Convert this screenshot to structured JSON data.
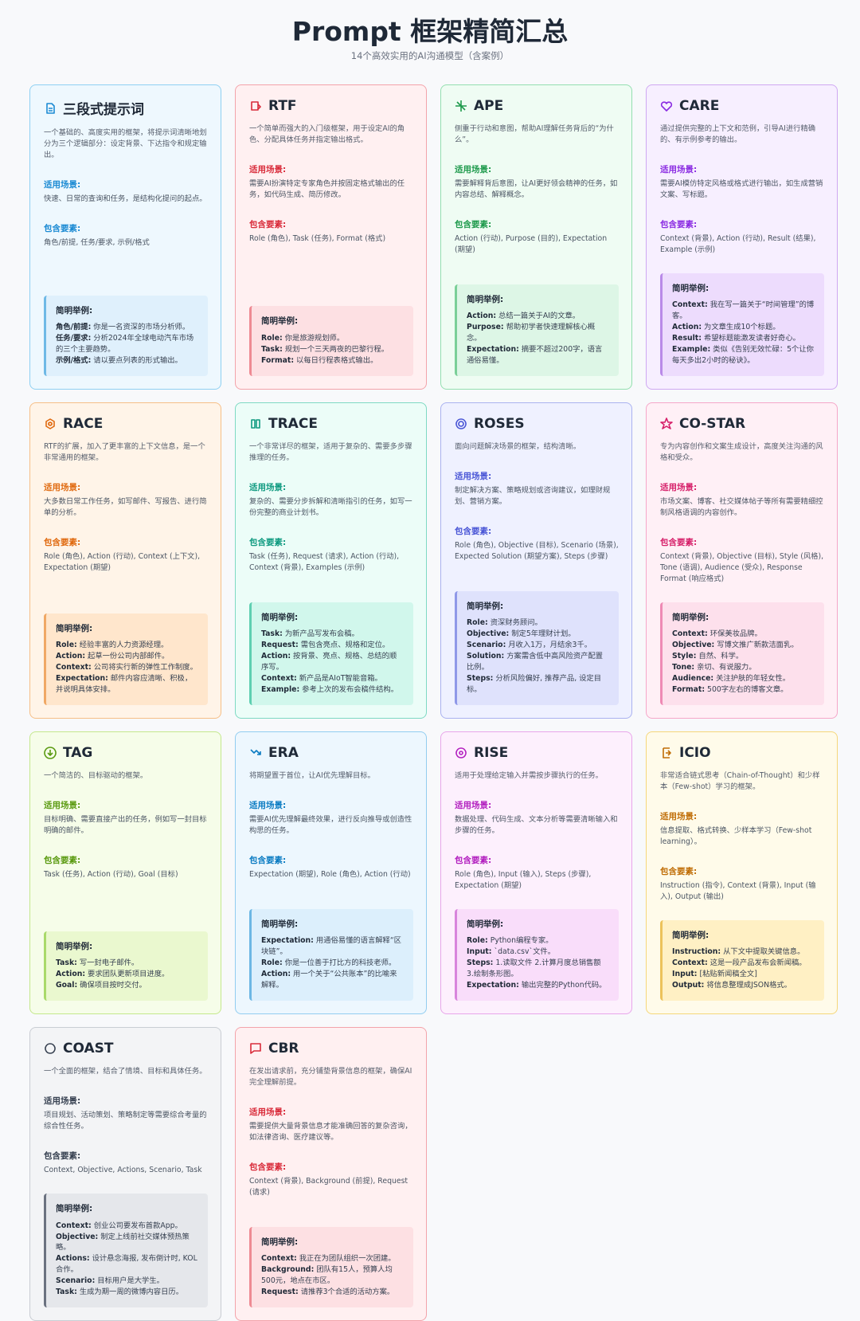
{
  "header": {
    "title": "Prompt 框架精简汇总",
    "subtitle": "14个高效实用的AI沟通模型（含案例）"
  },
  "cards": [
    {
      "title": "三段式提示词",
      "description": "一个基础的、高度实用的框架，将提示词清晰地划分为三个逻辑部分：设定背景、下达指令和规定输出。",
      "scenario_label": "适用场景:",
      "scenario": "快速、日常的查询和任务，是结构化提问的起点。",
      "elements_label": "包含要素:",
      "elements": "角色/前提, 任务/要求, 示例/格式",
      "example_label": "简明举例:",
      "example": [
        {
          "key": "角色/前提:",
          "text": "你是一名资深的市场分析师。"
        },
        {
          "key": "任务/要求:",
          "text": "分析2024年全球电动汽车市场的三个主要趋势。"
        },
        {
          "key": "示例/格式:",
          "text": "请以要点列表的形式输出。"
        }
      ]
    },
    {
      "title": "RTF",
      "description": "一个简单而强大的入门级框架，用于设定AI的角色、分配具体任务并指定输出格式。",
      "scenario_label": "适用场景:",
      "scenario": "需要AI扮演特定专家角色并按固定格式输出的任务，如代码生成、简历修改。",
      "elements_label": "包含要素:",
      "elements": "Role (角色), Task (任务), Format (格式)",
      "example_label": "简明举例:",
      "example": [
        {
          "key": "Role:",
          "text": "你是旅游规划师。"
        },
        {
          "key": "Task:",
          "text": "规划一个三天两夜的巴黎行程。"
        },
        {
          "key": "Format:",
          "text": "以每日行程表格式输出。"
        }
      ]
    },
    {
      "title": "APE",
      "description": "侧重于行动和意图，帮助AI理解任务背后的“为什么”。",
      "scenario_label": "适用场景:",
      "scenario": "需要解释背后意图，让AI更好领会精神的任务，如内容总结、解释概念。",
      "elements_label": "包含要素:",
      "elements": "Action (行动), Purpose (目的), Expectation (期望)",
      "example_label": "简明举例:",
      "example": [
        {
          "key": "Action:",
          "text": "总结一篇关于AI的文章。"
        },
        {
          "key": "Purpose:",
          "text": "帮助初学者快速理解核心概念。"
        },
        {
          "key": "Expectation:",
          "text": "摘要不超过200字，语言通俗易懂。"
        }
      ]
    },
    {
      "title": "CARE",
      "description": "通过提供完整的上下文和范例，引导AI进行精确的、有示例参考的输出。",
      "scenario_label": "适用场景:",
      "scenario": "需要AI模仿特定风格或格式进行输出，如生成营销文案、写标题。",
      "elements_label": "包含要素:",
      "elements": "Context (背景), Action (行动), Result (结果), Example (示例)",
      "example_label": "简明举例:",
      "example": [
        {
          "key": "Context:",
          "text": "我在写一篇关于“时间管理”的博客。"
        },
        {
          "key": "Action:",
          "text": "为文章生成10个标题。"
        },
        {
          "key": "Result:",
          "text": "希望标题能激发读者好奇心。"
        },
        {
          "key": "Example:",
          "text": "类似《告别无效忙碌：5个让你每天多出2小时的秘诀》。"
        }
      ]
    },
    {
      "title": "RACE",
      "description": "RTF的扩展，加入了更丰富的上下文信息，是一个非常通用的框架。",
      "scenario_label": "适用场景:",
      "scenario": "大多数日常工作任务，如写邮件、写报告、进行简单的分析。",
      "elements_label": "包含要素:",
      "elements": "Role (角色), Action (行动), Context (上下文), Expectation (期望)",
      "example_label": "简明举例:",
      "example": [
        {
          "key": "Role:",
          "text": "经验丰富的人力资源经理。"
        },
        {
          "key": "Action:",
          "text": "起草一份公司内部邮件。"
        },
        {
          "key": "Context:",
          "text": "公司将实行新的弹性工作制度。"
        },
        {
          "key": "Expectation:",
          "text": "邮件内容应清晰、积极，并说明具体安排。"
        }
      ]
    },
    {
      "title": "TRACE",
      "description": "一个非常详尽的框架，适用于复杂的、需要多步骤推理的任务。",
      "scenario_label": "适用场景:",
      "scenario": "复杂的、需要分步拆解和清晰指引的任务，如写一份完整的商业计划书。",
      "elements_label": "包含要素:",
      "elements": "Task (任务), Request (请求), Action (行动), Context (背景), Examples (示例)",
      "example_label": "简明举例:",
      "example": [
        {
          "key": "Task:",
          "text": "为新产品写发布会稿。"
        },
        {
          "key": "Request:",
          "text": "需包含亮点、规格和定位。"
        },
        {
          "key": "Action:",
          "text": "按背景、亮点、规格、总结的顺序写。"
        },
        {
          "key": "Context:",
          "text": "新产品是AIoT智能音箱。"
        },
        {
          "key": "Example:",
          "text": "参考上次的发布会稿件结构。"
        }
      ]
    },
    {
      "title": "ROSES",
      "description": "面向问题解决场景的框架，结构清晰。",
      "scenario_label": "适用场景:",
      "scenario": "制定解决方案、策略规划或咨询建议，如理财规划、营销方案。",
      "elements_label": "包含要素:",
      "elements": "Role (角色), Objective (目标), Scenario (场景), Expected Solution (期望方案), Steps (步骤)",
      "example_label": "简明举例:",
      "example": [
        {
          "key": "Role:",
          "text": "资深财务顾问。"
        },
        {
          "key": "Objective:",
          "text": "制定5年理财计划。"
        },
        {
          "key": "Scenario:",
          "text": "月收入1万，月结余3千。"
        },
        {
          "key": "Solution:",
          "text": "方案需含低中高风险资产配置比例。"
        },
        {
          "key": "Steps:",
          "text": "分析风险偏好, 推荐产品, 设定目标。"
        }
      ]
    },
    {
      "title": "CO-STAR",
      "description": "专为内容创作和文案生成设计，高度关注沟通的风格和受众。",
      "scenario_label": "适用场景:",
      "scenario": "市场文案、博客、社交媒体帖子等所有需要精细控制风格语调的内容创作。",
      "elements_label": "包含要素:",
      "elements": "Context (背景), Objective (目标), Style (风格), Tone (语调), Audience (受众), Response Format (响应格式)",
      "example_label": "简明举例:",
      "example": [
        {
          "key": "Context:",
          "text": "环保美妆品牌。"
        },
        {
          "key": "Objective:",
          "text": "写博文推广新款洁面乳。"
        },
        {
          "key": "Style:",
          "text": "自然、科学。"
        },
        {
          "key": "Tone:",
          "text": "亲切、有说服力。"
        },
        {
          "key": "Audience:",
          "text": "关注护肤的年轻女性。"
        },
        {
          "key": "Format:",
          "text": "500字左右的博客文章。"
        }
      ]
    },
    {
      "title": "TAG",
      "description": "一个简洁的、目标驱动的框架。",
      "scenario_label": "适用场景:",
      "scenario": "目标明确、需要直接产出的任务，例如写一封目标明确的邮件。",
      "elements_label": "包含要素:",
      "elements": "Task (任务), Action (行动), Goal (目标)",
      "example_label": "简明举例:",
      "example": [
        {
          "key": "Task:",
          "text": "写一封电子邮件。"
        },
        {
          "key": "Action:",
          "text": "要求团队更新项目进度。"
        },
        {
          "key": "Goal:",
          "text": "确保项目按时交付。"
        }
      ]
    },
    {
      "title": "ERA",
      "description": "将期望置于首位，让AI优先理解目标。",
      "scenario_label": "适用场景:",
      "scenario": "需要AI优先理解最终效果，进行反向推导或创造性构思的任务。",
      "elements_label": "包含要素:",
      "elements": "Expectation (期望), Role (角色), Action (行动)",
      "example_label": "简明举例:",
      "example": [
        {
          "key": "Expectation:",
          "text": "用通俗易懂的语言解释“区块链”。"
        },
        {
          "key": "Role:",
          "text": "你是一位善于打比方的科技老师。"
        },
        {
          "key": "Action:",
          "text": "用一个关于“公共账本”的比喻来解释。"
        }
      ]
    },
    {
      "title": "RISE",
      "description": "适用于处理给定输入并需按步骤执行的任务。",
      "scenario_label": "适用场景:",
      "scenario": "数据处理、代码生成、文本分析等需要清晰输入和步骤的任务。",
      "elements_label": "包含要素:",
      "elements": "Role (角色), Input (输入), Steps (步骤), Expectation (期望)",
      "example_label": "简明举例:",
      "example": [
        {
          "key": "Role:",
          "text": "Python编程专家。"
        },
        {
          "key": "Input:",
          "text": "`data.csv`文件。"
        },
        {
          "key": "Steps:",
          "text": "1.读取文件 2.计算月度总销售额 3.绘制条形图。"
        },
        {
          "key": "Expectation:",
          "text": "输出完整的Python代码。"
        }
      ]
    },
    {
      "title": "ICIO",
      "description": "非常适合链式思考（Chain-of-Thought）和少样本（Few-shot）学习的框架。",
      "scenario_label": "适用场景:",
      "scenario": "信息提取、格式转换、少样本学习（Few-shot learning）。",
      "elements_label": "包含要素:",
      "elements": "Instruction (指令), Context (背景), Input (输入), Output (输出)",
      "example_label": "简明举例:",
      "example": [
        {
          "key": "Instruction:",
          "text": "从下文中提取关键信息。"
        },
        {
          "key": "Context:",
          "text": "这是一段产品发布会新闻稿。"
        },
        {
          "key": "Input:",
          "text": "[粘贴新闻稿全文]"
        },
        {
          "key": "Output:",
          "text": "将信息整理成JSON格式。"
        }
      ]
    },
    {
      "title": "COAST",
      "description": "一个全面的框架，结合了情境、目标和具体任务。",
      "scenario_label": "适用场景:",
      "scenario": "项目规划、活动策划、策略制定等需要综合考量的综合性任务。",
      "elements_label": "包含要素:",
      "elements": "Context, Objective, Actions, Scenario, Task",
      "example_label": "简明举例:",
      "example": [
        {
          "key": "Context:",
          "text": "创业公司要发布首款App。"
        },
        {
          "key": "Objective:",
          "text": "制定上线前社交媒体预热策略。"
        },
        {
          "key": "Actions:",
          "text": "设计悬念海报, 发布倒计时, KOL合作。"
        },
        {
          "key": "Scenario:",
          "text": "目标用户是大学生。"
        },
        {
          "key": "Task:",
          "text": "生成为期一周的微博内容日历。"
        }
      ]
    },
    {
      "title": "CBR",
      "description": "在发出请求前，充分铺垫背景信息的框架，确保AI完全理解前提。",
      "scenario_label": "适用场景:",
      "scenario": "需要提供大量背景信息才能准确回答的复杂咨询，如法律咨询、医疗建议等。",
      "elements_label": "包含要素:",
      "elements": "Context (背景), Background (前提), Request (请求)",
      "example_label": "简明举例:",
      "example": [
        {
          "key": "Context:",
          "text": "我正在为团队组织一次团建。"
        },
        {
          "key": "Background:",
          "text": "团队有15人，预算人均500元，地点在市区。"
        },
        {
          "key": "Request:",
          "text": "请推荐3个合适的活动方案。"
        }
      ]
    }
  ]
}
